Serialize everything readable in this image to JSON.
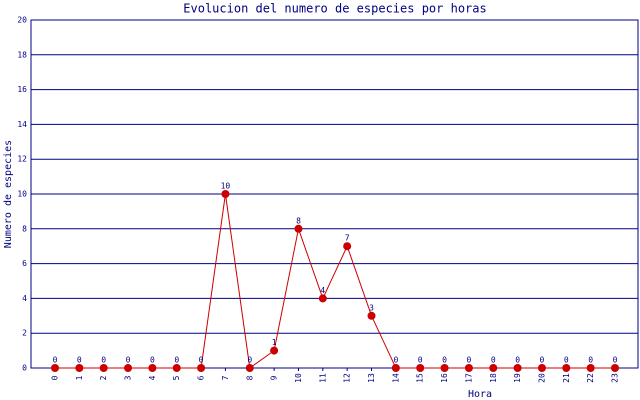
{
  "chart_data": {
    "type": "line",
    "title": "Evolucion del numero de especies por horas",
    "x_label": "Hora",
    "y_label": "Numero de especies",
    "categories": [
      "0",
      "1",
      "2",
      "3",
      "4",
      "5",
      "6",
      "7",
      "8",
      "9",
      "10",
      "11",
      "12",
      "13",
      "14",
      "15",
      "16",
      "17",
      "18",
      "19",
      "20",
      "21",
      "22",
      "23"
    ],
    "series": [
      {
        "name": "especies",
        "color": "#cc0000",
        "values": [
          0,
          0,
          0,
          0,
          0,
          0,
          0,
          10,
          0,
          1,
          8,
          4,
          7,
          3,
          0,
          0,
          0,
          0,
          0,
          0,
          0,
          0,
          0,
          0
        ]
      }
    ],
    "ylim": [
      0,
      20
    ],
    "yticks": [
      0,
      2,
      4,
      6,
      8,
      10,
      12,
      14,
      16,
      18,
      20
    ],
    "grid": true,
    "legend": false
  }
}
